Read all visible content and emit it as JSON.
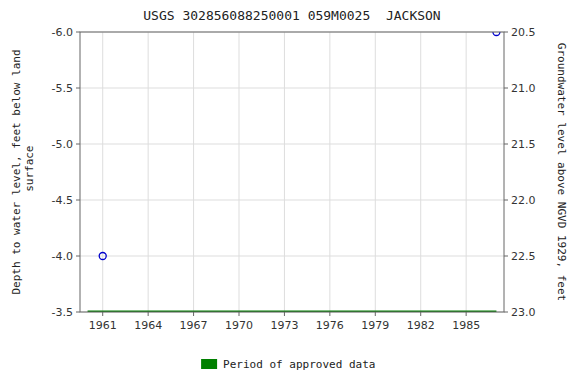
{
  "chart_data": {
    "type": "line",
    "title": "USGS 302856088250001 059M0025  JACKSON",
    "ylabel": "Depth to water level, feet below land\n surface",
    "y2label": "Groundwater level above NGVD 1929, feet",
    "xlim": [
      1959.5,
      1987.5
    ],
    "xticks": [
      1961,
      1964,
      1967,
      1970,
      1973,
      1976,
      1979,
      1982,
      1985
    ],
    "ylim": [
      -3.5,
      -6.0
    ],
    "yticks": [
      {
        "value": -6.0,
        "label": "-6.0"
      },
      {
        "value": -5.5,
        "label": "-5.5"
      },
      {
        "value": -5.0,
        "label": "-5.0"
      },
      {
        "value": -4.5,
        "label": "-4.5"
      },
      {
        "value": -4.0,
        "label": "-4.0"
      },
      {
        "value": -3.5,
        "label": "-3.5"
      }
    ],
    "y2lim": [
      23.0,
      20.5
    ],
    "y2ticks": [
      20.5,
      {
        "value": 21.0,
        "label": "21.0"
      },
      21.5,
      {
        "value": 22.0,
        "label": "22.0"
      },
      22.5,
      {
        "value": 23.0,
        "label": "23.0"
      }
    ],
    "grid": true,
    "legend": "bottom",
    "series": [
      {
        "name": "Period of approved data",
        "type": "line",
        "color": "#008000",
        "line_style": "solid",
        "x": [
          1960.0,
          1987.0
        ],
        "values": [
          -3.5,
          -3.5
        ]
      },
      {
        "type": "scatter",
        "marker": "open-circle",
        "color": "#0000cc",
        "x": [
          1961,
          1987
        ],
        "values": [
          -4.0,
          -6.0
        ]
      }
    ]
  }
}
